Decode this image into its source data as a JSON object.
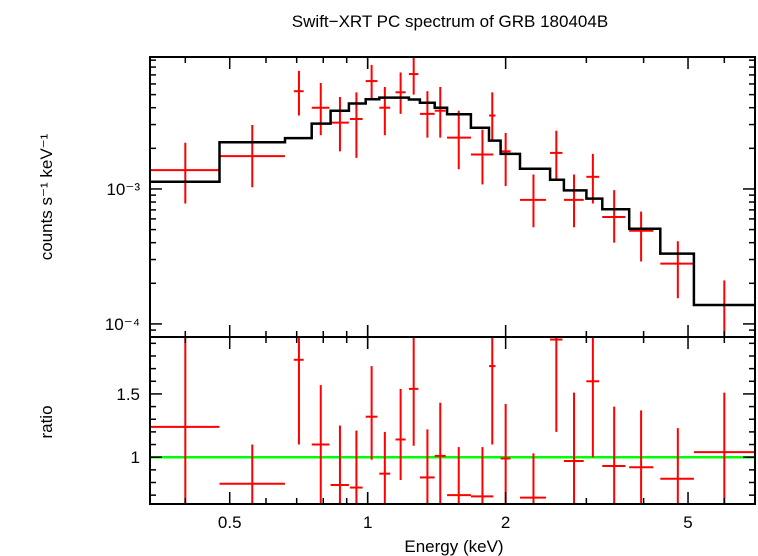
{
  "chart_data": {
    "type": "line",
    "title": "Swift−XRT PC spectrum of GRB 180404B",
    "xlabel": "Energy (keV)",
    "xscale": "log",
    "xlim": [
      0.335,
      7.0
    ],
    "x_tick_labels": [
      {
        "value": 0.5,
        "label": "0.5"
      },
      {
        "value": 1,
        "label": "1"
      },
      {
        "value": 2,
        "label": "2"
      },
      {
        "value": 5,
        "label": "5"
      }
    ],
    "panels": [
      {
        "name": "spectrum",
        "ylabel": "counts s⁻¹ keV⁻¹",
        "yscale": "log",
        "ylim": [
          8e-05,
          0.0095
        ],
        "y_tick_labels": [
          {
            "value": 0.001,
            "label": "10⁻³"
          },
          {
            "value": 0.0001,
            "label": "10⁻⁴"
          }
        ],
        "series": [
          {
            "kind": "data",
            "color": "#ff0000",
            "points": [
              {
                "x": 0.4,
                "xlo": 0.335,
                "xhi": 0.475,
                "y": 0.00138,
                "ylo": 0.00078,
                "yhi": 0.0022
              },
              {
                "x": 0.56,
                "xlo": 0.475,
                "xhi": 0.66,
                "y": 0.00175,
                "ylo": 0.00103,
                "yhi": 0.00298
              },
              {
                "x": 0.708,
                "xlo": 0.69,
                "xhi": 0.725,
                "y": 0.0053,
                "ylo": 0.0035,
                "yhi": 0.0075
              },
              {
                "x": 0.79,
                "xlo": 0.755,
                "xhi": 0.825,
                "y": 0.004,
                "ylo": 0.0025,
                "yhi": 0.0061
              },
              {
                "x": 0.87,
                "xlo": 0.83,
                "xhi": 0.91,
                "y": 0.0031,
                "ylo": 0.0019,
                "yhi": 0.0048
              },
              {
                "x": 0.945,
                "xlo": 0.915,
                "xhi": 0.975,
                "y": 0.0033,
                "ylo": 0.0017,
                "yhi": 0.0052
              },
              {
                "x": 1.02,
                "xlo": 0.99,
                "xhi": 1.05,
                "y": 0.0063,
                "ylo": 0.0047,
                "yhi": 0.0083
              },
              {
                "x": 1.09,
                "xlo": 1.06,
                "xhi": 1.12,
                "y": 0.004,
                "ylo": 0.0025,
                "yhi": 0.0057
              },
              {
                "x": 1.18,
                "xlo": 1.15,
                "xhi": 1.21,
                "y": 0.0052,
                "ylo": 0.0036,
                "yhi": 0.0073
              },
              {
                "x": 1.26,
                "xlo": 1.23,
                "xhi": 1.29,
                "y": 0.0071,
                "ylo": 0.005,
                "yhi": 0.0098
              },
              {
                "x": 1.35,
                "xlo": 1.3,
                "xhi": 1.4,
                "y": 0.0036,
                "ylo": 0.0024,
                "yhi": 0.0053
              },
              {
                "x": 1.44,
                "xlo": 1.4,
                "xhi": 1.48,
                "y": 0.0038,
                "ylo": 0.0024,
                "yhi": 0.0057
              },
              {
                "x": 1.58,
                "xlo": 1.49,
                "xhi": 1.68,
                "y": 0.0024,
                "ylo": 0.0014,
                "yhi": 0.0038
              },
              {
                "x": 1.78,
                "xlo": 1.68,
                "xhi": 1.88,
                "y": 0.0018,
                "ylo": 0.00108,
                "yhi": 0.00275
              },
              {
                "x": 1.87,
                "xlo": 1.84,
                "xhi": 1.9,
                "y": 0.0035,
                "ylo": 0.0023,
                "yhi": 0.0052
              },
              {
                "x": 2.0,
                "xlo": 1.95,
                "xhi": 2.05,
                "y": 0.0019,
                "ylo": 0.00105,
                "yhi": 0.0026
              },
              {
                "x": 2.3,
                "xlo": 2.15,
                "xhi": 2.45,
                "y": 0.00083,
                "ylo": 0.00052,
                "yhi": 0.00128
              },
              {
                "x": 2.58,
                "xlo": 2.5,
                "xhi": 2.66,
                "y": 0.00185,
                "ylo": 0.00118,
                "yhi": 0.0027
              },
              {
                "x": 2.82,
                "xlo": 2.68,
                "xhi": 2.96,
                "y": 0.00083,
                "ylo": 0.00052,
                "yhi": 0.00128
              },
              {
                "x": 3.1,
                "xlo": 3.0,
                "xhi": 3.2,
                "y": 0.00123,
                "ylo": 0.00078,
                "yhi": 0.00182
              },
              {
                "x": 3.45,
                "xlo": 3.25,
                "xhi": 3.65,
                "y": 0.00062,
                "ylo": 0.0004,
                "yhi": 0.00098
              },
              {
                "x": 3.95,
                "xlo": 3.72,
                "xhi": 4.2,
                "y": 0.00049,
                "ylo": 0.00029,
                "yhi": 0.00068
              },
              {
                "x": 4.75,
                "xlo": 4.35,
                "xhi": 5.15,
                "y": 0.00028,
                "ylo": 0.000155,
                "yhi": 0.00041
              },
              {
                "x": 6.0,
                "xlo": 5.15,
                "xhi": 7.0,
                "y": 0.000138,
                "ylo": 8.2e-05,
                "yhi": 0.00021
              }
            ]
          },
          {
            "kind": "model",
            "color": "#000000",
            "edges": [
              0.335,
              0.475,
              0.66,
              0.755,
              0.83,
              0.91,
              0.99,
              1.06,
              1.15,
              1.23,
              1.3,
              1.4,
              1.49,
              1.68,
              1.84,
              1.95,
              2.15,
              2.5,
              2.68,
              3.0,
              3.25,
              3.72,
              4.35,
              5.15,
              7.0
            ],
            "values": [
              0.00113,
              0.00222,
              0.00238,
              0.00305,
              0.0038,
              0.0043,
              0.00462,
              0.00475,
              0.00475,
              0.0046,
              0.00435,
              0.004,
              0.00358,
              0.00284,
              0.00228,
              0.00182,
              0.00141,
              0.00117,
              0.000975,
              0.000848,
              0.000707,
              0.000508,
              0.000332,
              0.000138
            ]
          }
        ]
      },
      {
        "name": "ratio",
        "ylabel": "ratio",
        "yscale": "linear",
        "ylim": [
          0.63,
          1.95
        ],
        "y_tick_labels": [
          {
            "value": 1,
            "label": "1"
          },
          {
            "value": 1.5,
            "label": "1.5"
          }
        ],
        "reference_line": {
          "y": 1,
          "color": "#00ff00"
        },
        "series": [
          {
            "kind": "data",
            "color": "#ff0000",
            "points": [
              {
                "x": 0.4,
                "xlo": 0.335,
                "xhi": 0.475,
                "y": 1.24,
                "ylo": 0.63,
                "yhi": 1.95
              },
              {
                "x": 0.56,
                "xlo": 0.475,
                "xhi": 0.66,
                "y": 0.79,
                "ylo": 0.63,
                "yhi": 1.1
              },
              {
                "x": 0.708,
                "xlo": 0.69,
                "xhi": 0.725,
                "y": 1.77,
                "ylo": 1.1,
                "yhi": 1.95
              },
              {
                "x": 0.79,
                "xlo": 0.755,
                "xhi": 0.825,
                "y": 1.1,
                "ylo": 0.63,
                "yhi": 1.57
              },
              {
                "x": 0.87,
                "xlo": 0.83,
                "xhi": 0.91,
                "y": 0.78,
                "ylo": 0.63,
                "yhi": 1.25
              },
              {
                "x": 0.945,
                "xlo": 0.915,
                "xhi": 0.975,
                "y": 0.76,
                "ylo": 0.63,
                "yhi": 1.21
              },
              {
                "x": 1.02,
                "xlo": 0.99,
                "xhi": 1.05,
                "y": 1.32,
                "ylo": 0.98,
                "yhi": 1.72
              },
              {
                "x": 1.09,
                "xlo": 1.06,
                "xhi": 1.12,
                "y": 0.87,
                "ylo": 0.63,
                "yhi": 1.2
              },
              {
                "x": 1.18,
                "xlo": 1.15,
                "xhi": 1.21,
                "y": 1.14,
                "ylo": 0.82,
                "yhi": 1.54
              },
              {
                "x": 1.26,
                "xlo": 1.23,
                "xhi": 1.29,
                "y": 1.54,
                "ylo": 1.09,
                "yhi": 1.95
              },
              {
                "x": 1.35,
                "xlo": 1.3,
                "xhi": 1.4,
                "y": 0.84,
                "ylo": 0.63,
                "yhi": 1.22
              },
              {
                "x": 1.44,
                "xlo": 1.4,
                "xhi": 1.48,
                "y": 1.01,
                "ylo": 0.63,
                "yhi": 1.43
              },
              {
                "x": 1.58,
                "xlo": 1.49,
                "xhi": 1.68,
                "y": 0.7,
                "ylo": 0.63,
                "yhi": 1.08
              },
              {
                "x": 1.78,
                "xlo": 1.68,
                "xhi": 1.88,
                "y": 0.69,
                "ylo": 0.63,
                "yhi": 1.08
              },
              {
                "x": 1.87,
                "xlo": 1.84,
                "xhi": 1.9,
                "y": 1.72,
                "ylo": 1.1,
                "yhi": 1.95
              },
              {
                "x": 2.0,
                "xlo": 1.95,
                "xhi": 2.05,
                "y": 0.99,
                "ylo": 0.63,
                "yhi": 1.42
              },
              {
                "x": 2.3,
                "xlo": 2.15,
                "xhi": 2.45,
                "y": 0.68,
                "ylo": 0.63,
                "yhi": 1.03
              },
              {
                "x": 2.58,
                "xlo": 2.5,
                "xhi": 2.66,
                "y": 1.93,
                "ylo": 1.2,
                "yhi": 1.95
              },
              {
                "x": 2.82,
                "xlo": 2.68,
                "xhi": 2.96,
                "y": 0.97,
                "ylo": 0.63,
                "yhi": 1.51
              },
              {
                "x": 3.1,
                "xlo": 3.0,
                "xhi": 3.2,
                "y": 1.6,
                "ylo": 1.0,
                "yhi": 1.95
              },
              {
                "x": 3.45,
                "xlo": 3.25,
                "xhi": 3.65,
                "y": 0.93,
                "ylo": 0.63,
                "yhi": 1.4
              },
              {
                "x": 3.95,
                "xlo": 3.72,
                "xhi": 4.2,
                "y": 0.92,
                "ylo": 0.63,
                "yhi": 1.37
              },
              {
                "x": 4.75,
                "xlo": 4.35,
                "xhi": 5.15,
                "y": 0.83,
                "ylo": 0.63,
                "yhi": 1.23
              },
              {
                "x": 6.0,
                "xlo": 5.15,
                "xhi": 7.0,
                "y": 1.04,
                "ylo": 0.63,
                "yhi": 1.51
              }
            ]
          }
        ]
      }
    ]
  }
}
